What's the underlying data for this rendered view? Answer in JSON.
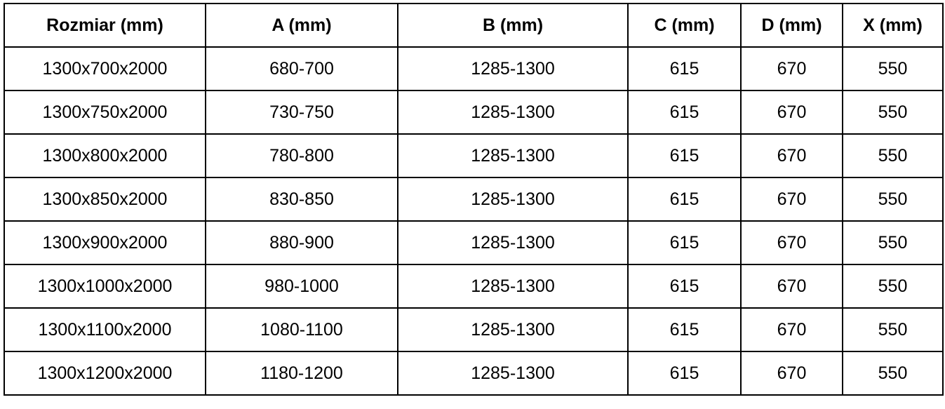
{
  "table": {
    "header": [
      "Rozmiar (mm)",
      "A (mm)",
      "B (mm)",
      "C (mm)",
      "D (mm)",
      "X (mm)"
    ],
    "rows": [
      [
        "1300x700x2000",
        "680-700",
        "1285-1300",
        "615",
        "670",
        "550"
      ],
      [
        "1300x750x2000",
        "730-750",
        "1285-1300",
        "615",
        "670",
        "550"
      ],
      [
        "1300x800x2000",
        "780-800",
        "1285-1300",
        "615",
        "670",
        "550"
      ],
      [
        "1300x850x2000",
        "830-850",
        "1285-1300",
        "615",
        "670",
        "550"
      ],
      [
        "1300x900x2000",
        "880-900",
        "1285-1300",
        "615",
        "670",
        "550"
      ],
      [
        "1300x1000x2000",
        "980-1000",
        "1285-1300",
        "615",
        "670",
        "550"
      ],
      [
        "1300x1100x2000",
        "1080-1100",
        "1285-1300",
        "615",
        "670",
        "550"
      ],
      [
        "1300x1200x2000",
        "1180-1200",
        "1285-1300",
        "615",
        "670",
        "550"
      ]
    ]
  }
}
